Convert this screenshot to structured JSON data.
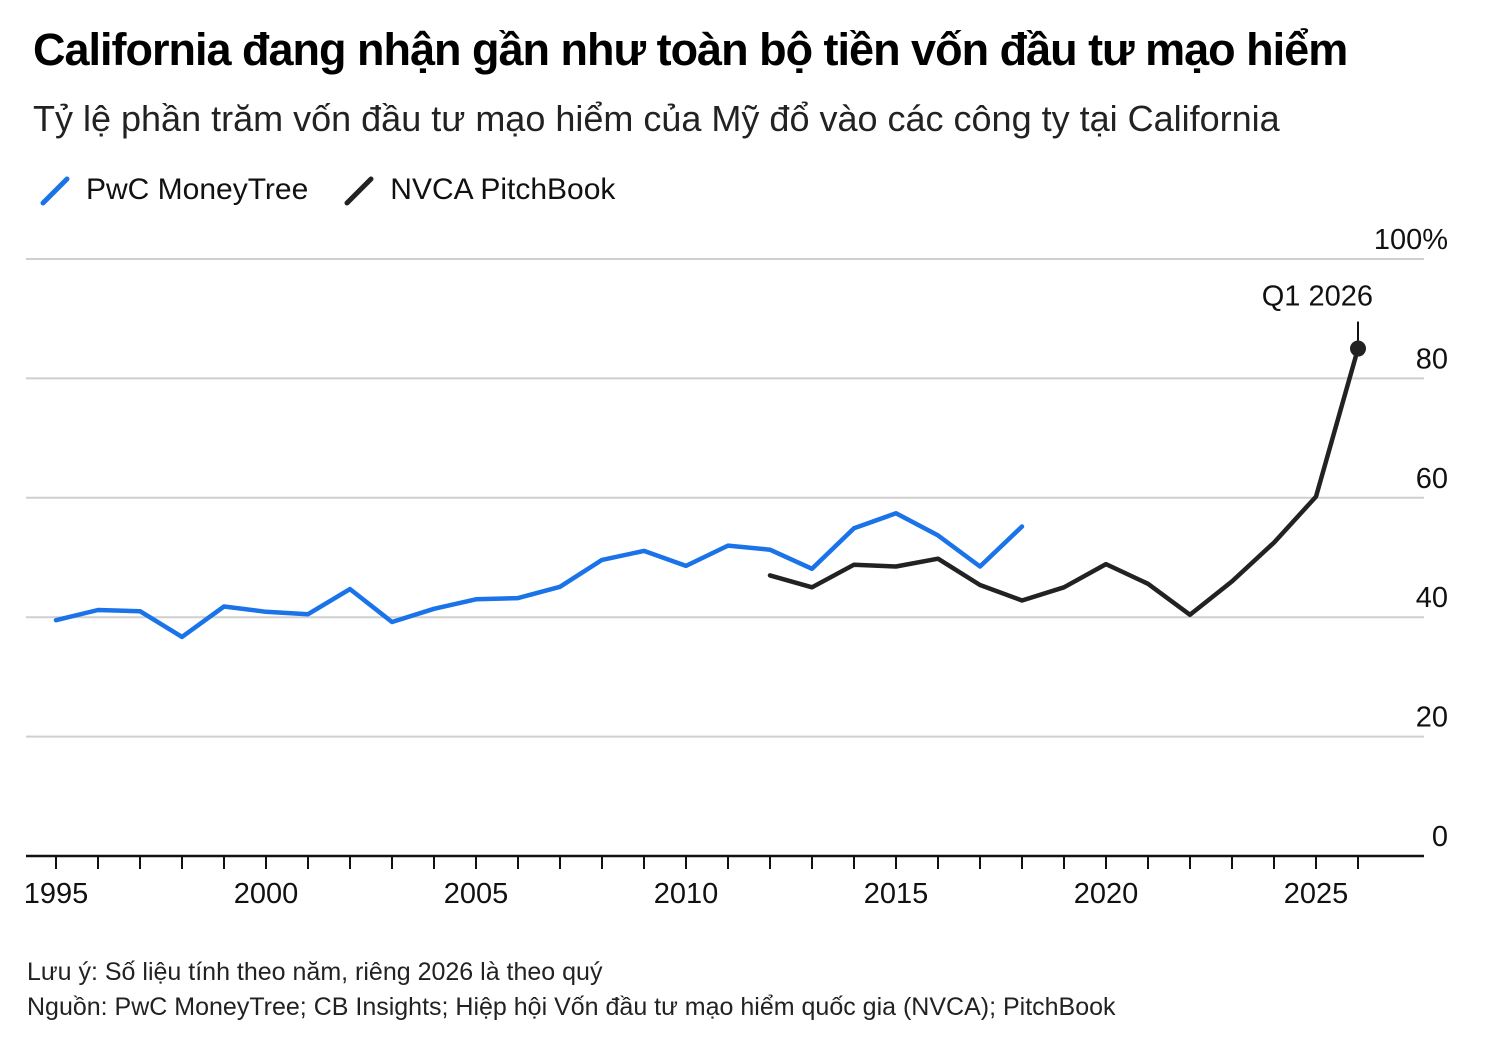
{
  "title": "California đang nhận gần như toàn bộ tiền vốn đầu tư mạo hiểm",
  "subtitle": "Tỷ lệ phần trăm vốn đầu tư mạo hiểm của Mỹ đổ vào các công ty tại California",
  "legend": [
    {
      "label": "PwC MoneyTree",
      "color": "#1a73e8"
    },
    {
      "label": "NVCA PitchBook",
      "color": "#222222"
    }
  ],
  "footnotes": {
    "note": "Lưu ý: Số liệu tính theo năm, riêng 2026 là theo quý",
    "source": "Nguồn: PwC MoneyTree; CB Insights; Hiệp hội Vốn đầu tư mạo hiểm quốc gia (NVCA); PitchBook"
  },
  "chart_data": {
    "type": "line",
    "xlim": [
      1995,
      2026
    ],
    "ylim": [
      0,
      100
    ],
    "x_ticks": [
      1995,
      2000,
      2005,
      2010,
      2015,
      2020,
      2025
    ],
    "minor_x_ticks": [
      1995,
      1996,
      1997,
      1998,
      1999,
      2000,
      2001,
      2002,
      2003,
      2004,
      2005,
      2006,
      2007,
      2008,
      2009,
      2010,
      2011,
      2012,
      2013,
      2014,
      2015,
      2016,
      2017,
      2018,
      2019,
      2020,
      2021,
      2022,
      2023,
      2024,
      2025,
      2026
    ],
    "y_ticks": [
      {
        "value": 100,
        "label": "100%"
      },
      {
        "value": 80,
        "label": "80"
      },
      {
        "value": 60,
        "label": "60"
      },
      {
        "value": 40,
        "label": "40"
      },
      {
        "value": 20,
        "label": "20"
      },
      {
        "value": 0,
        "label": "0"
      }
    ],
    "series": [
      {
        "name": "PwC MoneyTree",
        "color": "#1a73e8",
        "x": [
          1995,
          1996,
          1997,
          1998,
          1999,
          2000,
          2001,
          2002,
          2003,
          2004,
          2005,
          2006,
          2007,
          2008,
          2009,
          2010,
          2011,
          2012,
          2013,
          2014,
          2015,
          2016,
          2017,
          2018
        ],
        "y": [
          39.5,
          41.2,
          41.0,
          36.7,
          41.8,
          40.9,
          40.5,
          44.7,
          39.2,
          41.4,
          43.0,
          43.2,
          45.1,
          49.6,
          51.1,
          48.6,
          52.0,
          51.3,
          48.1,
          54.9,
          57.4,
          53.7,
          48.5,
          55.2
        ]
      },
      {
        "name": "NVCA PitchBook",
        "color": "#222222",
        "x": [
          2012,
          2013,
          2014,
          2015,
          2016,
          2017,
          2018,
          2019,
          2020,
          2021,
          2022,
          2023,
          2024,
          2025,
          2026
        ],
        "y": [
          47.0,
          45.0,
          48.8,
          48.5,
          49.8,
          45.4,
          42.8,
          45.0,
          48.9,
          45.6,
          40.4,
          46.0,
          52.5,
          60.2,
          85.0
        ]
      }
    ],
    "annotations": [
      {
        "text": "Q1 2026",
        "x": 2026,
        "y": 85.0,
        "series": "NVCA PitchBook"
      }
    ]
  }
}
